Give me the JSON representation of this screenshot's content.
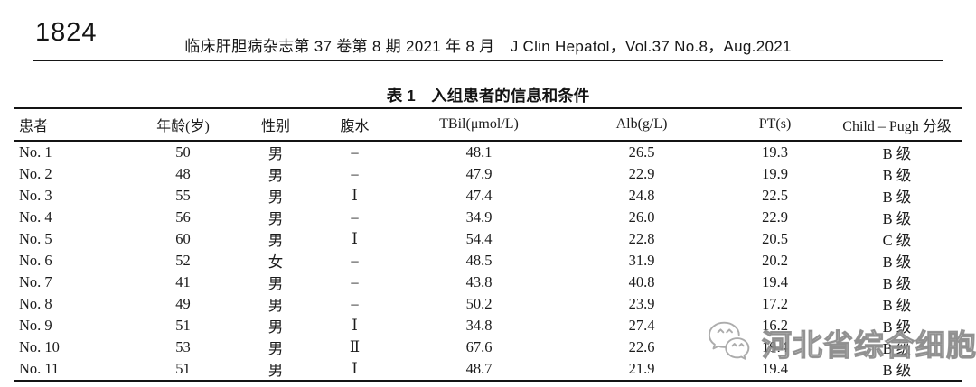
{
  "page": {
    "page_number": "1824",
    "journal_line": "临床肝胆病杂志第 37 卷第 8 期 2021 年 8 月　J Clin Hepatol，Vol.37 No.8，Aug.2021"
  },
  "table": {
    "title": "表 1　入组患者的信息和条件",
    "columns": [
      "患者",
      "年龄(岁)",
      "性别",
      "腹水",
      "TBil(μmol/L)",
      "Alb(g/L)",
      "PT(s)",
      "Child – Pugh 分级"
    ],
    "rows": [
      [
        "No. 1",
        "50",
        "男",
        "–",
        "48.1",
        "26.5",
        "19.3",
        "B 级"
      ],
      [
        "No. 2",
        "48",
        "男",
        "–",
        "47.9",
        "22.9",
        "19.9",
        "B 级"
      ],
      [
        "No. 3",
        "55",
        "男",
        "Ⅰ",
        "47.4",
        "24.8",
        "22.5",
        "B 级"
      ],
      [
        "No. 4",
        "56",
        "男",
        "–",
        "34.9",
        "26.0",
        "22.9",
        "B 级"
      ],
      [
        "No. 5",
        "60",
        "男",
        "Ⅰ",
        "54.4",
        "22.8",
        "20.5",
        "C 级"
      ],
      [
        "No. 6",
        "52",
        "女",
        "–",
        "48.5",
        "31.9",
        "20.2",
        "B 级"
      ],
      [
        "No. 7",
        "41",
        "男",
        "–",
        "43.8",
        "40.8",
        "19.4",
        "B 级"
      ],
      [
        "No. 8",
        "49",
        "男",
        "–",
        "50.2",
        "23.9",
        "17.2",
        "B 级"
      ],
      [
        "No. 9",
        "51",
        "男",
        "Ⅰ",
        "34.8",
        "27.4",
        "16.2",
        "B 级"
      ],
      [
        "No. 10",
        "53",
        "男",
        "Ⅱ",
        "67.6",
        "22.6",
        "19.4",
        "B 级"
      ],
      [
        "No. 11",
        "51",
        "男",
        "Ⅰ",
        "48.7",
        "21.9",
        "19.4",
        "B 级"
      ]
    ]
  },
  "watermark": {
    "text": "河北省综合细胞库",
    "icon": "wechat-icon",
    "color": "#969696"
  }
}
